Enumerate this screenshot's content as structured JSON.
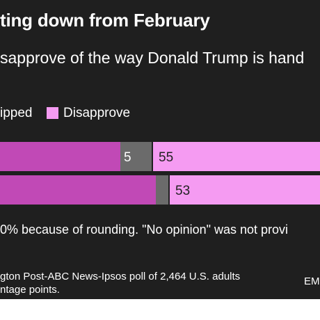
{
  "header": {
    "title": "ting down from February",
    "subtitle": "sapprove of the way Donald Trump is hand"
  },
  "legend": {
    "items": [
      {
        "label": "ipped",
        "color": "#c149b6"
      },
      {
        "label": "Disapprove",
        "color": "#f59bf2"
      }
    ]
  },
  "colors": {
    "background": "#1f1f1f",
    "approve": "#c149b6",
    "skipped": "#6b6b6b",
    "disapprove": "#f59bf2"
  },
  "chart_data": {
    "type": "bar",
    "orientation": "horizontal",
    "stacked": true,
    "series": [
      {
        "name": "ipped",
        "values": [
          5,
          2
        ],
        "labels": [
          "5",
          ""
        ]
      },
      {
        "name": "Disapprove",
        "values": [
          55,
          53
        ],
        "labels": [
          "55",
          "53"
        ]
      }
    ]
  },
  "footnote": "0% because of rounding. \"No opinion\" was not provi",
  "source": {
    "line1": "gton Post-ABC News-Ipsos poll of 2,464 U.S. adults",
    "line2": "ntage points."
  },
  "credit": "EM"
}
